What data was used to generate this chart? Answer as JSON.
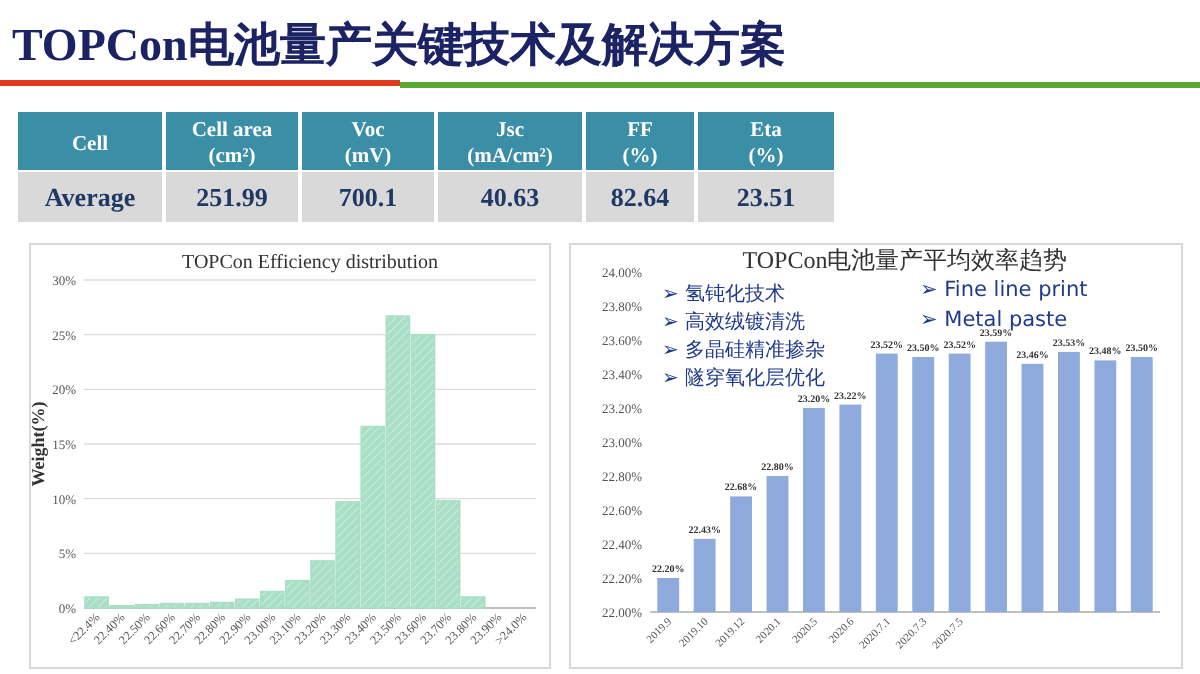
{
  "chart_data": [
    {
      "type": "other",
      "title": "TOPCon电池量产关键技术及解决方案",
      "categories": [
        "Cell area (cm²)",
        "Voc (mV)",
        "Jsc (mA/cm²)",
        "FF (%)",
        "Eta (%)"
      ],
      "annotations": [
        "Cell"
      ],
      "data_labels": true,
      "series": [
        {
          "name": "Average",
          "values": [
            251.99,
            700.1,
            40.63,
            82.64,
            23.51
          ]
        }
      ]
    },
    {
      "type": "bar",
      "title": "TOPCon Efficiency distribution",
      "ylabel": "Weight(%)",
      "color": "#a8dfc6",
      "categories": [
        "<22.4%",
        "22.40%",
        "22.50%",
        "22.60%",
        "22.70%",
        "22.80%",
        "22.90%",
        "23.00%",
        "23.10%",
        "23.20%",
        "23.30%",
        "23.40%",
        "23.50%",
        "23.60%",
        "23.70%",
        "23.80%",
        "23.90%",
        ">24.0%"
      ],
      "values": [
        1.0,
        0.2,
        0.3,
        0.4,
        0.4,
        0.5,
        0.8,
        1.5,
        2.5,
        4.3,
        9.7,
        16.6,
        26.7,
        25.0,
        9.8,
        1.0,
        0,
        0
      ],
      "ylim": [
        0,
        30
      ],
      "yticks": [
        {
          "value": 0,
          "label": "0%"
        },
        {
          "value": 5,
          "label": "5%"
        },
        {
          "value": 10,
          "label": "10%"
        },
        {
          "value": 15,
          "label": "15%"
        },
        {
          "value": 20,
          "label": "20%"
        },
        {
          "value": 25,
          "label": "25%"
        },
        {
          "value": 30,
          "label": "30%"
        }
      ],
      "grid": "y"
    },
    {
      "type": "bar",
      "title": "TOPCon电池量产平均效率趋势",
      "color": "#8faadc",
      "categories": [
        "2019.9",
        "2019.10",
        "2019.12",
        "2020.1",
        "2020.5",
        "2020.6",
        "2020.7.1",
        "2020.7.3",
        "2020.7.5",
        null,
        null,
        null,
        null,
        null
      ],
      "values": [
        22.2,
        22.43,
        22.68,
        22.8,
        23.2,
        23.22,
        23.52,
        23.5,
        23.52,
        23.59,
        23.46,
        23.53,
        23.48,
        23.5
      ],
      "value_labels": [
        "22.20%",
        "22.43%",
        "22.68%",
        "22.80%",
        "23.20%",
        "23.22%",
        "23.52%",
        "23.50%",
        "23.52%",
        "23.59%",
        "23.46%",
        "23.53%",
        "23.48%",
        "23.50%"
      ],
      "ylim": [
        22,
        24
      ],
      "yticks": [
        {
          "value": 22,
          "label": "22.00%"
        },
        {
          "value": 22.2,
          "label": "22.20%"
        },
        {
          "value": 22.4,
          "label": "22.40%"
        },
        {
          "value": 22.6,
          "label": "22.60%"
        },
        {
          "value": 22.8,
          "label": "22.80%"
        },
        {
          "value": 23,
          "label": "23.00%"
        },
        {
          "value": 23.2,
          "label": "23.20%"
        },
        {
          "value": 23.4,
          "label": "23.40%"
        },
        {
          "value": 23.6,
          "label": "23.60%"
        },
        {
          "value": 23.8,
          "label": "23.80%"
        },
        {
          "value": 24,
          "label": "24.00%"
        }
      ],
      "annotations": [
        "➢ 氢钝化技术",
        "➢ 高效绒镀清洗",
        "➢ 多晶硅精准掺杂",
        "➢ 隧穿氧化层优化",
        "➢ Fine line print",
        "➢ Metal paste"
      ]
    }
  ]
}
